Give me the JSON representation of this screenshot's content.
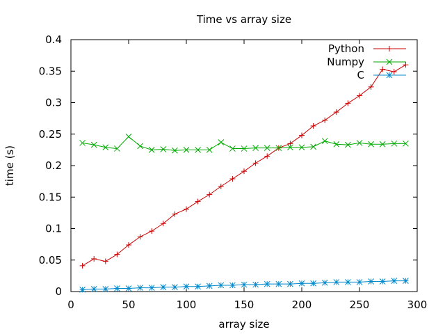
{
  "chart_data": {
    "type": "line",
    "title": "Time vs array size",
    "xlabel": "array size",
    "ylabel": "time (s)",
    "xlim": [
      0,
      300
    ],
    "ylim": [
      0,
      0.4
    ],
    "xticks": [
      "0",
      "50",
      "100",
      "150",
      "200",
      "250",
      "300"
    ],
    "yticks": [
      "0",
      "0.05",
      "0.1",
      "0.15",
      "0.2",
      "0.25",
      "0.3",
      "0.35",
      "0.4"
    ],
    "grid": false,
    "legend": "top-right",
    "x": [
      10,
      20,
      30,
      40,
      50,
      60,
      70,
      80,
      90,
      100,
      110,
      120,
      130,
      140,
      150,
      160,
      170,
      180,
      190,
      200,
      210,
      220,
      230,
      240,
      250,
      260,
      270,
      280,
      290
    ],
    "series": [
      {
        "name": "Python",
        "color": "#cc0000",
        "marker": "plus",
        "values": [
          0.041,
          0.052,
          0.048,
          0.059,
          0.074,
          0.087,
          0.096,
          0.108,
          0.123,
          0.131,
          0.143,
          0.154,
          0.167,
          0.179,
          0.191,
          0.204,
          0.215,
          0.228,
          0.235,
          0.248,
          0.263,
          0.272,
          0.285,
          0.299,
          0.311,
          0.325,
          0.353,
          0.349,
          0.36
        ]
      },
      {
        "name": "Numpy",
        "color": "#00aa00",
        "marker": "cross",
        "values": [
          0.236,
          0.233,
          0.229,
          0.227,
          0.246,
          0.231,
          0.225,
          0.226,
          0.224,
          0.225,
          0.225,
          0.225,
          0.237,
          0.227,
          0.227,
          0.228,
          0.228,
          0.228,
          0.229,
          0.229,
          0.23,
          0.239,
          0.234,
          0.233,
          0.236,
          0.234,
          0.234,
          0.235,
          0.235
        ]
      },
      {
        "name": "C",
        "color": "#0088cc",
        "marker": "star",
        "values": [
          0.003,
          0.004,
          0.004,
          0.005,
          0.005,
          0.006,
          0.006,
          0.007,
          0.007,
          0.008,
          0.008,
          0.009,
          0.01,
          0.01,
          0.011,
          0.011,
          0.012,
          0.012,
          0.012,
          0.013,
          0.013,
          0.014,
          0.015,
          0.015,
          0.015,
          0.016,
          0.016,
          0.017,
          0.017
        ]
      }
    ]
  }
}
